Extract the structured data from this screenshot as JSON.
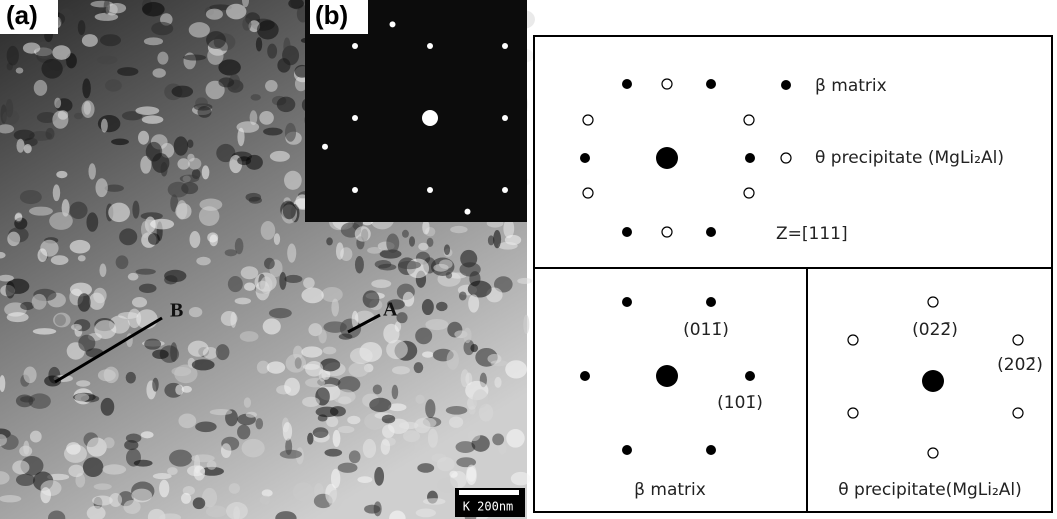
{
  "panel_a": {
    "label": "(a)",
    "markers": [
      "B",
      "A"
    ],
    "scale_bar": "K 200nm"
  },
  "panel_b": {
    "label": "(b)"
  },
  "legend": {
    "matrix": "β matrix",
    "precipitate": "θ precipitate (MgLi₂Al)",
    "zone_axis": "Z=[111]"
  },
  "matrix_pattern": {
    "indices": [
      "(011̄)",
      "(101̄)"
    ],
    "caption": "β matrix"
  },
  "precipitate_pattern": {
    "indices": [
      "(022̄)",
      "(202̄)"
    ],
    "caption": "θ precipitate(MgLi₂Al)"
  }
}
